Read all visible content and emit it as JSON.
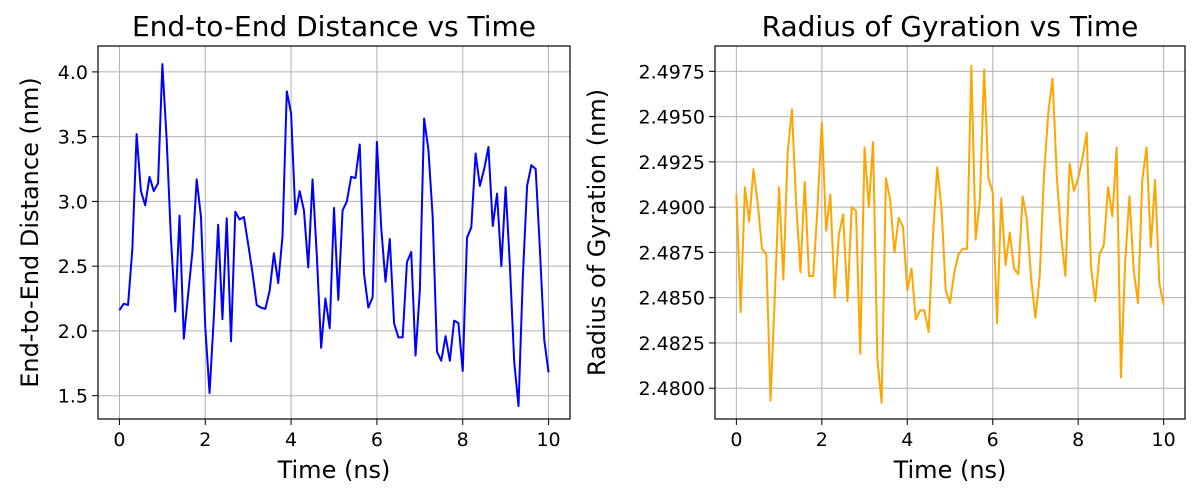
{
  "chart_data": [
    {
      "type": "line",
      "title": "End-to-End Distance vs Time",
      "xlabel": "Time (ns)",
      "ylabel": "End-to-End Distance (nm)",
      "xlim": [
        -0.5,
        10.5
      ],
      "ylim": [
        1.32,
        4.2
      ],
      "xticks": [
        0,
        2,
        4,
        6,
        8,
        10
      ],
      "xtick_labels": [
        "0",
        "2",
        "4",
        "6",
        "8",
        "10"
      ],
      "yticks": [
        1.5,
        2.0,
        2.5,
        3.0,
        3.5,
        4.0
      ],
      "ytick_labels": [
        "1.5",
        "2.0",
        "2.5",
        "3.0",
        "3.5",
        "4.0"
      ],
      "grid": true,
      "series": [
        {
          "color": "#0000ff",
          "x": [
            0.0,
            0.1,
            0.2,
            0.3,
            0.4,
            0.5,
            0.6,
            0.7,
            0.8,
            0.9,
            1.0,
            1.1,
            1.2,
            1.3,
            1.4,
            1.5,
            1.6,
            1.7,
            1.8,
            1.9,
            2.0,
            2.1,
            2.2,
            2.3,
            2.4,
            2.5,
            2.6,
            2.7,
            2.8,
            2.9,
            3.0,
            3.1,
            3.2,
            3.3,
            3.4,
            3.5,
            3.6,
            3.7,
            3.8,
            3.9,
            4.0,
            4.1,
            4.2,
            4.3,
            4.4,
            4.5,
            4.6,
            4.7,
            4.8,
            4.9,
            5.0,
            5.1,
            5.2,
            5.3,
            5.4,
            5.5,
            5.6,
            5.7,
            5.8,
            5.9,
            6.0,
            6.1,
            6.2,
            6.3,
            6.4,
            6.5,
            6.6,
            6.7,
            6.8,
            6.9,
            7.0,
            7.1,
            7.2,
            7.3,
            7.4,
            7.5,
            7.6,
            7.7,
            7.8,
            7.9,
            8.0,
            8.1,
            8.2,
            8.3,
            8.4,
            8.5,
            8.6,
            8.7,
            8.8,
            8.9,
            9.0,
            9.1,
            9.2,
            9.3,
            9.4,
            9.5,
            9.6,
            9.7,
            9.8,
            9.9,
            10.0
          ],
          "y": [
            2.16,
            2.21,
            2.2,
            2.63,
            3.52,
            3.08,
            2.97,
            3.19,
            3.08,
            3.14,
            4.06,
            3.48,
            2.71,
            2.15,
            2.89,
            1.94,
            2.28,
            2.61,
            3.17,
            2.88,
            2.03,
            1.52,
            2.11,
            2.82,
            2.09,
            2.87,
            1.92,
            2.92,
            2.86,
            2.88,
            2.67,
            2.45,
            2.2,
            2.18,
            2.17,
            2.31,
            2.6,
            2.37,
            2.73,
            3.85,
            3.68,
            2.9,
            3.08,
            2.93,
            2.49,
            3.17,
            2.58,
            1.87,
            2.25,
            2.02,
            2.95,
            2.24,
            2.93,
            3.0,
            3.19,
            3.18,
            3.44,
            2.44,
            2.18,
            2.26,
            3.46,
            2.8,
            2.38,
            2.71,
            2.06,
            1.95,
            1.95,
            2.53,
            2.61,
            1.81,
            2.31,
            3.64,
            3.4,
            2.88,
            1.84,
            1.77,
            1.96,
            1.77,
            2.08,
            2.06,
            1.69,
            2.72,
            2.8,
            3.37,
            3.12,
            3.25,
            3.42,
            2.81,
            3.06,
            2.5,
            3.11,
            2.5,
            1.76,
            1.42,
            2.41,
            3.12,
            3.28,
            3.25,
            2.62,
            1.93,
            1.68
          ]
        }
      ]
    },
    {
      "type": "line",
      "title": "Radius of Gyration vs Time",
      "xlabel": "Time (ns)",
      "ylabel": "Radius of Gyration (nm)",
      "xlim": [
        -0.5,
        10.5
      ],
      "ylim": [
        2.4783,
        2.4989
      ],
      "xticks": [
        0,
        2,
        4,
        6,
        8,
        10
      ],
      "xtick_labels": [
        "0",
        "2",
        "4",
        "6",
        "8",
        "10"
      ],
      "yticks": [
        2.48,
        2.4825,
        2.485,
        2.4875,
        2.49,
        2.4925,
        2.495,
        2.4975
      ],
      "ytick_labels": [
        "2.4800",
        "2.4825",
        "2.4850",
        "2.4875",
        "2.4900",
        "2.4925",
        "2.4950",
        "2.4975"
      ],
      "grid": true,
      "series": [
        {
          "color": "#ffa500",
          "x": [
            0.0,
            0.1,
            0.2,
            0.3,
            0.4,
            0.5,
            0.6,
            0.7,
            0.8,
            0.9,
            1.0,
            1.1,
            1.2,
            1.3,
            1.4,
            1.5,
            1.6,
            1.7,
            1.8,
            1.9,
            2.0,
            2.1,
            2.2,
            2.3,
            2.4,
            2.5,
            2.6,
            2.7,
            2.8,
            2.9,
            3.0,
            3.1,
            3.2,
            3.3,
            3.4,
            3.5,
            3.6,
            3.7,
            3.8,
            3.9,
            4.0,
            4.1,
            4.2,
            4.3,
            4.4,
            4.5,
            4.6,
            4.7,
            4.8,
            4.9,
            5.0,
            5.1,
            5.2,
            5.3,
            5.4,
            5.5,
            5.6,
            5.7,
            5.8,
            5.9,
            6.0,
            6.1,
            6.2,
            6.3,
            6.4,
            6.5,
            6.6,
            6.7,
            6.8,
            6.9,
            7.0,
            7.1,
            7.2,
            7.3,
            7.4,
            7.5,
            7.6,
            7.7,
            7.8,
            7.9,
            8.0,
            8.1,
            8.2,
            8.3,
            8.4,
            8.5,
            8.6,
            8.7,
            8.8,
            8.9,
            9.0,
            9.1,
            9.2,
            9.3,
            9.4,
            9.5,
            9.6,
            9.7,
            9.8,
            9.9,
            10.0
          ],
          "y": [
            2.4907,
            2.4842,
            2.4911,
            2.4892,
            2.4921,
            2.4902,
            2.4877,
            2.4874,
            2.4793,
            2.4851,
            2.4911,
            2.486,
            2.493,
            2.4954,
            2.4902,
            2.4864,
            2.4914,
            2.4862,
            2.4862,
            2.49,
            2.4947,
            2.4887,
            2.4907,
            2.485,
            2.4885,
            2.4896,
            2.4848,
            2.49,
            2.4898,
            2.4819,
            2.4933,
            2.49,
            2.4936,
            2.4816,
            2.4792,
            2.4916,
            2.4904,
            2.4875,
            2.4894,
            2.4889,
            2.4854,
            2.4866,
            2.4838,
            2.4843,
            2.4843,
            2.4831,
            2.4883,
            2.4922,
            2.49,
            2.4854,
            2.4847,
            2.4864,
            2.4874,
            2.4877,
            2.4877,
            2.4978,
            2.4882,
            2.4904,
            2.4976,
            2.4916,
            2.4908,
            2.4836,
            2.4905,
            2.4868,
            2.4886,
            2.4866,
            2.4863,
            2.4906,
            2.4893,
            2.486,
            2.4839,
            2.4862,
            2.4918,
            2.4952,
            2.4971,
            2.4917,
            2.4884,
            2.4862,
            2.4924,
            2.4909,
            2.4916,
            2.4927,
            2.4941,
            2.4867,
            2.4848,
            2.4874,
            2.4879,
            2.4911,
            2.4895,
            2.4933,
            2.4806,
            2.487,
            2.4906,
            2.4865,
            2.4847,
            2.4915,
            2.4933,
            2.4878,
            2.4915,
            2.4858,
            2.4846
          ]
        }
      ]
    }
  ]
}
